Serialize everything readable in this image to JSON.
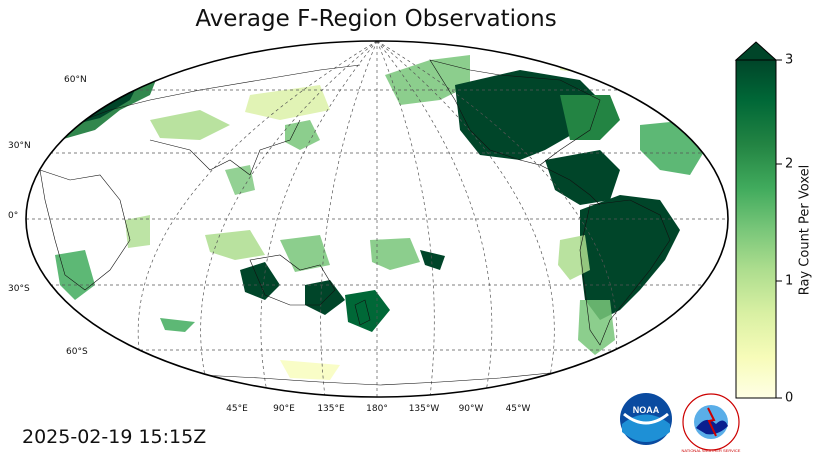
{
  "title": "Average F-Region Observations",
  "timestamp": "2025-02-19 15:15Z",
  "colorbar": {
    "label": "Ray Count Per Voxel",
    "ticks": [
      "0",
      "1",
      "2",
      "3"
    ],
    "colors": [
      "#ffffe5",
      "#f7fcb9",
      "#d9f0a3",
      "#addd8e",
      "#78c679",
      "#41ab5d",
      "#238443",
      "#006837",
      "#004529"
    ]
  },
  "lat_labels": [
    "60°N",
    "30°N",
    "0°",
    "30°S",
    "60°S"
  ],
  "lon_labels": [
    "45°E",
    "90°E",
    "135°E",
    "180°",
    "135°W",
    "90°W",
    "45°W"
  ],
  "logos": {
    "noaa": "NOAA",
    "nws": "NATIONAL WEATHER SERVICE"
  }
}
